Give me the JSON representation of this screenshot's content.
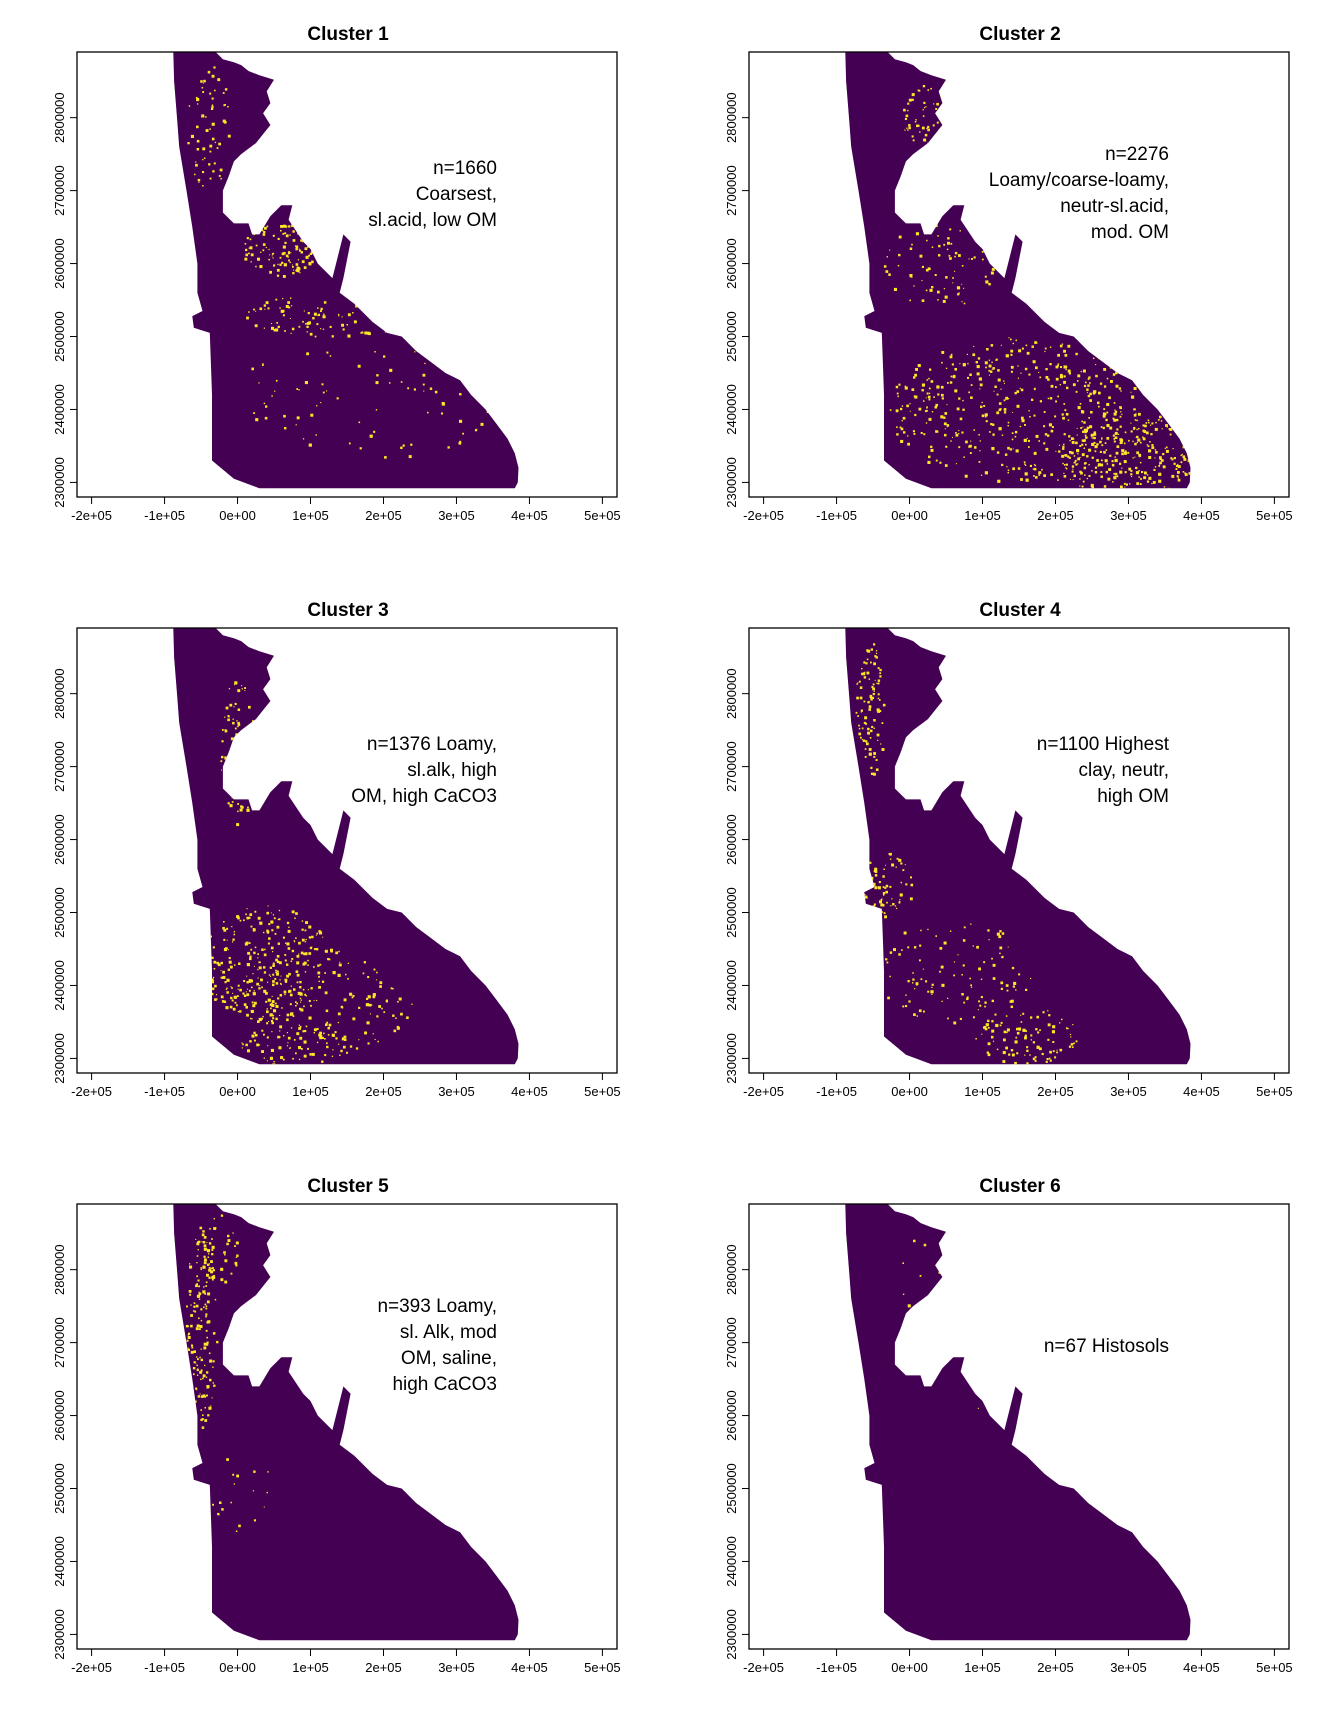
{
  "colors": {
    "background": "#440154",
    "highlight": "#fde725",
    "frame": "#000000"
  },
  "axes": {
    "x_ticks": [
      "-2e+05",
      "-1e+05",
      "0e+00",
      "1e+05",
      "2e+05",
      "3e+05",
      "4e+05",
      "5e+05"
    ],
    "x_tick_values": [
      -200000,
      -100000,
      0,
      100000,
      200000,
      300000,
      400000,
      500000
    ],
    "y_ticks": [
      "2300000",
      "2400000",
      "2500000",
      "2600000",
      "2700000",
      "2800000"
    ],
    "y_tick_values": [
      2300000,
      2400000,
      2500000,
      2600000,
      2700000,
      2800000
    ],
    "x_range": [
      -220000,
      520000
    ],
    "y_range": [
      2280000,
      2890000
    ]
  },
  "region_outline_xy": [
    [
      -88000,
      2890000
    ],
    [
      -30000,
      2890000
    ],
    [
      -20000,
      2880000
    ],
    [
      -5000,
      2876000
    ],
    [
      5000,
      2872000
    ],
    [
      15000,
      2864000
    ],
    [
      30000,
      2858000
    ],
    [
      50000,
      2852000
    ],
    [
      40000,
      2836000
    ],
    [
      45000,
      2820000
    ],
    [
      35000,
      2806000
    ],
    [
      45000,
      2790000
    ],
    [
      25000,
      2765000
    ],
    [
      5000,
      2750000
    ],
    [
      -5000,
      2740000
    ],
    [
      -12000,
      2720000
    ],
    [
      -20000,
      2700000
    ],
    [
      -20000,
      2670000
    ],
    [
      -5000,
      2655000
    ],
    [
      15000,
      2655000
    ],
    [
      20000,
      2640000
    ],
    [
      30000,
      2640000
    ],
    [
      45000,
      2665000
    ],
    [
      60000,
      2680000
    ],
    [
      75000,
      2680000
    ],
    [
      70000,
      2660000
    ],
    [
      80000,
      2645000
    ],
    [
      90000,
      2630000
    ],
    [
      100000,
      2620000
    ],
    [
      110000,
      2600000
    ],
    [
      130000,
      2580000
    ],
    [
      145000,
      2640000
    ],
    [
      155000,
      2630000
    ],
    [
      145000,
      2580000
    ],
    [
      140000,
      2560000
    ],
    [
      160000,
      2545000
    ],
    [
      185000,
      2520000
    ],
    [
      205000,
      2505000
    ],
    [
      225000,
      2500000
    ],
    [
      245000,
      2480000
    ],
    [
      265000,
      2465000
    ],
    [
      285000,
      2450000
    ],
    [
      305000,
      2440000
    ],
    [
      320000,
      2420000
    ],
    [
      340000,
      2400000
    ],
    [
      355000,
      2380000
    ],
    [
      370000,
      2360000
    ],
    [
      380000,
      2340000
    ],
    [
      385000,
      2320000
    ],
    [
      384000,
      2300000
    ],
    [
      380000,
      2292000
    ],
    [
      30000,
      2292000
    ],
    [
      -5000,
      2305000
    ],
    [
      -35000,
      2330000
    ],
    [
      -35000,
      2420000
    ],
    [
      -38000,
      2505000
    ],
    [
      -60000,
      2512000
    ],
    [
      -62000,
      2528000
    ],
    [
      -48000,
      2535000
    ],
    [
      -55000,
      2560000
    ],
    [
      -55000,
      2600000
    ],
    [
      -62000,
      2650000
    ],
    [
      -70000,
      2700000
    ],
    [
      -80000,
      2760000
    ],
    [
      -83000,
      2800000
    ],
    [
      -87000,
      2850000
    ],
    [
      -88000,
      2890000
    ]
  ],
  "panels": [
    {
      "title": "Cluster 1",
      "annotation": [
        "n=1660",
        "Coarsest,",
        "sl.acid, low OM"
      ],
      "n": 1660,
      "highlight_zones": [
        {
          "x": 60000,
          "y": 2620000,
          "rx": 55000,
          "ry": 38000,
          "density": 0.9
        },
        {
          "x": -40000,
          "y": 2790000,
          "rx": 30000,
          "ry": 90000,
          "density": 0.35
        },
        {
          "x": 130000,
          "y": 2530000,
          "rx": 120000,
          "ry": 30000,
          "density": 0.45
        },
        {
          "x": 180000,
          "y": 2420000,
          "rx": 180000,
          "ry": 90000,
          "density": 0.08
        }
      ]
    },
    {
      "title": "Cluster 2",
      "annotation": [
        "n=2276",
        "Loamy/coarse-loamy,",
        "neutr-sl.acid,",
        "mod. OM"
      ],
      "n": 2276,
      "highlight_zones": [
        {
          "x": 300000,
          "y": 2340000,
          "rx": 100000,
          "ry": 60000,
          "density": 0.75
        },
        {
          "x": 150000,
          "y": 2400000,
          "rx": 180000,
          "ry": 100000,
          "density": 0.4
        },
        {
          "x": 20000,
          "y": 2800000,
          "rx": 30000,
          "ry": 50000,
          "density": 0.55
        },
        {
          "x": 40000,
          "y": 2600000,
          "rx": 80000,
          "ry": 60000,
          "density": 0.25
        }
      ]
    },
    {
      "title": "Cluster 3",
      "annotation": [
        "n=1376 Loamy,",
        "sl.alk, high",
        "OM, high CaCO3"
      ],
      "n": 1376,
      "highlight_zones": [
        {
          "x": 40000,
          "y": 2430000,
          "rx": 90000,
          "ry": 80000,
          "density": 0.6
        },
        {
          "x": 0,
          "y": 2720000,
          "rx": 25000,
          "ry": 100000,
          "density": 0.5
        },
        {
          "x": 120000,
          "y": 2380000,
          "rx": 120000,
          "ry": 70000,
          "density": 0.3
        },
        {
          "x": 80000,
          "y": 2320000,
          "rx": 80000,
          "ry": 30000,
          "density": 0.45
        }
      ]
    },
    {
      "title": "Cluster 4",
      "annotation": [
        "n=1100 Highest",
        "clay, neutr,",
        "high OM"
      ],
      "n": 1100,
      "highlight_zones": [
        {
          "x": -55000,
          "y": 2780000,
          "rx": 20000,
          "ry": 100000,
          "density": 0.75
        },
        {
          "x": -30000,
          "y": 2540000,
          "rx": 35000,
          "ry": 45000,
          "density": 0.7
        },
        {
          "x": 160000,
          "y": 2330000,
          "rx": 70000,
          "ry": 40000,
          "density": 0.55
        },
        {
          "x": 60000,
          "y": 2420000,
          "rx": 110000,
          "ry": 70000,
          "density": 0.22
        }
      ]
    },
    {
      "title": "Cluster 5",
      "annotation": [
        "n=393 Loamy,",
        "sl. Alk, mod",
        "OM, saline,",
        "high CaCO3"
      ],
      "n": 393,
      "highlight_zones": [
        {
          "x": -50000,
          "y": 2720000,
          "rx": 22000,
          "ry": 140000,
          "density": 0.8
        },
        {
          "x": -25000,
          "y": 2830000,
          "rx": 25000,
          "ry": 50000,
          "density": 0.5
        },
        {
          "x": 0,
          "y": 2500000,
          "rx": 45000,
          "ry": 60000,
          "density": 0.1
        }
      ]
    },
    {
      "title": "Cluster 6",
      "annotation": [
        "n=67 Histosols"
      ],
      "n": 67,
      "highlight_zones": [
        {
          "x": 15000,
          "y": 2790000,
          "rx": 40000,
          "ry": 60000,
          "density": 0.06
        },
        {
          "x": 80000,
          "y": 2620000,
          "rx": 40000,
          "ry": 30000,
          "density": 0.03
        }
      ]
    }
  ]
}
